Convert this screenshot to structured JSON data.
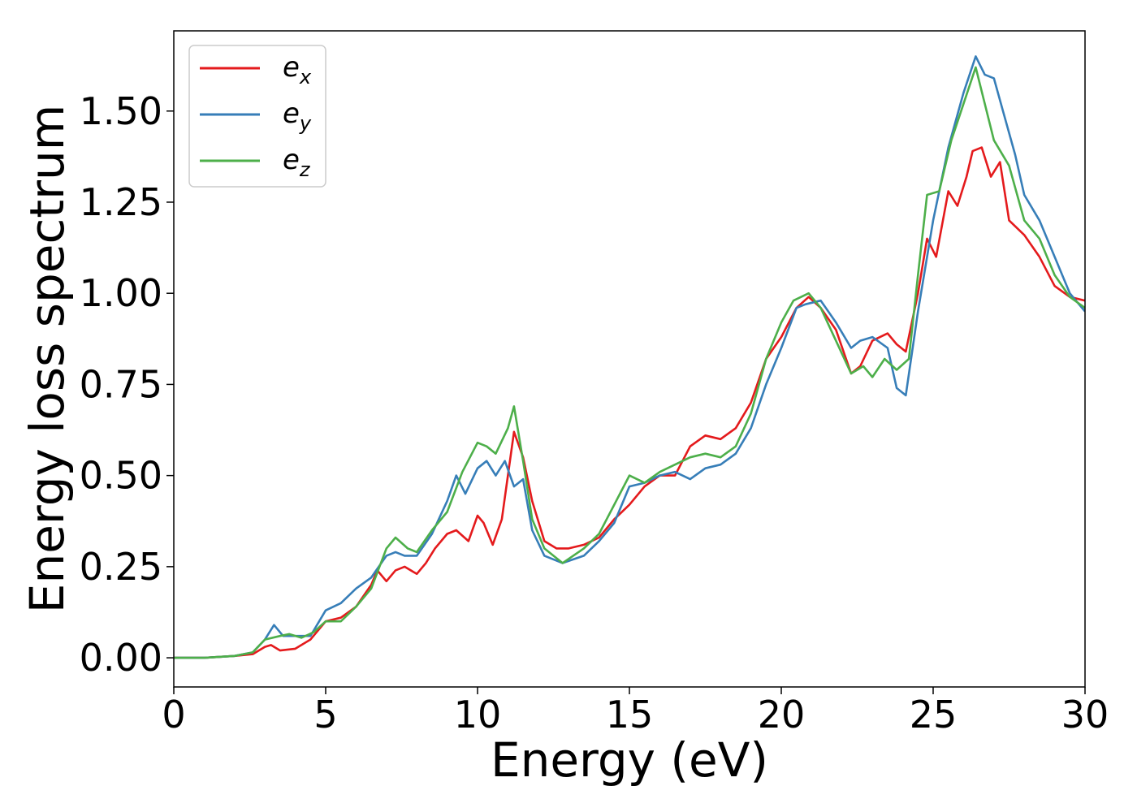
{
  "chart_data": {
    "type": "line",
    "title": "",
    "xlabel": "Energy (eV)",
    "ylabel": "Energy loss spectrum",
    "xlim": [
      0,
      30
    ],
    "ylim": [
      -0.08,
      1.72
    ],
    "xticks": [
      0,
      5,
      10,
      15,
      20,
      25,
      30
    ],
    "xtick_labels": [
      "0",
      "5",
      "10",
      "15",
      "20",
      "25",
      "30"
    ],
    "yticks": [
      0.0,
      0.25,
      0.5,
      0.75,
      1.0,
      1.25,
      1.5
    ],
    "ytick_labels": [
      "0.00",
      "0.25",
      "0.50",
      "0.75",
      "1.00",
      "1.25",
      "1.50"
    ],
    "grid": false,
    "legend_position": "upper left",
    "series": [
      {
        "name": "e_x",
        "label_base": "e",
        "label_sub": "x",
        "color": "#e41a1c",
        "points": [
          [
            0,
            0
          ],
          [
            1,
            0
          ],
          [
            2,
            0.005
          ],
          [
            2.6,
            0.01
          ],
          [
            3.0,
            0.03
          ],
          [
            3.2,
            0.035
          ],
          [
            3.5,
            0.02
          ],
          [
            4.0,
            0.025
          ],
          [
            4.5,
            0.05
          ],
          [
            5.0,
            0.1
          ],
          [
            5.5,
            0.11
          ],
          [
            6.0,
            0.14
          ],
          [
            6.5,
            0.2
          ],
          [
            6.7,
            0.24
          ],
          [
            7.0,
            0.21
          ],
          [
            7.3,
            0.24
          ],
          [
            7.6,
            0.25
          ],
          [
            8.0,
            0.23
          ],
          [
            8.3,
            0.26
          ],
          [
            8.6,
            0.3
          ],
          [
            9.0,
            0.34
          ],
          [
            9.3,
            0.35
          ],
          [
            9.7,
            0.32
          ],
          [
            10.0,
            0.39
          ],
          [
            10.2,
            0.37
          ],
          [
            10.5,
            0.31
          ],
          [
            10.8,
            0.38
          ],
          [
            11.0,
            0.5
          ],
          [
            11.2,
            0.62
          ],
          [
            11.5,
            0.55
          ],
          [
            11.8,
            0.43
          ],
          [
            12.2,
            0.32
          ],
          [
            12.6,
            0.3
          ],
          [
            13.0,
            0.3
          ],
          [
            13.5,
            0.31
          ],
          [
            14.0,
            0.33
          ],
          [
            14.5,
            0.38
          ],
          [
            15.0,
            0.42
          ],
          [
            15.5,
            0.47
          ],
          [
            16.0,
            0.5
          ],
          [
            16.5,
            0.5
          ],
          [
            17.0,
            0.58
          ],
          [
            17.5,
            0.61
          ],
          [
            18.0,
            0.6
          ],
          [
            18.5,
            0.63
          ],
          [
            19.0,
            0.7
          ],
          [
            19.5,
            0.82
          ],
          [
            20.0,
            0.88
          ],
          [
            20.5,
            0.96
          ],
          [
            20.9,
            0.99
          ],
          [
            21.3,
            0.96
          ],
          [
            21.8,
            0.9
          ],
          [
            22.3,
            0.78
          ],
          [
            22.6,
            0.8
          ],
          [
            23.0,
            0.87
          ],
          [
            23.5,
            0.89
          ],
          [
            23.8,
            0.86
          ],
          [
            24.1,
            0.84
          ],
          [
            24.5,
            1.0
          ],
          [
            24.8,
            1.15
          ],
          [
            25.1,
            1.1
          ],
          [
            25.5,
            1.28
          ],
          [
            25.8,
            1.24
          ],
          [
            26.1,
            1.32
          ],
          [
            26.3,
            1.39
          ],
          [
            26.6,
            1.4
          ],
          [
            26.9,
            1.32
          ],
          [
            27.2,
            1.36
          ],
          [
            27.5,
            1.2
          ],
          [
            28.0,
            1.16
          ],
          [
            28.5,
            1.1
          ],
          [
            29.0,
            1.02
          ],
          [
            29.5,
            0.99
          ],
          [
            30.0,
            0.98
          ]
        ]
      },
      {
        "name": "e_y",
        "label_base": "e",
        "label_sub": "y",
        "color": "#377eb8",
        "points": [
          [
            0,
            0
          ],
          [
            1,
            0
          ],
          [
            2,
            0.005
          ],
          [
            2.6,
            0.015
          ],
          [
            3.0,
            0.05
          ],
          [
            3.3,
            0.09
          ],
          [
            3.6,
            0.06
          ],
          [
            4.0,
            0.06
          ],
          [
            4.5,
            0.06
          ],
          [
            5.0,
            0.13
          ],
          [
            5.5,
            0.15
          ],
          [
            6.0,
            0.19
          ],
          [
            6.5,
            0.22
          ],
          [
            7.0,
            0.28
          ],
          [
            7.3,
            0.29
          ],
          [
            7.6,
            0.28
          ],
          [
            8.0,
            0.28
          ],
          [
            8.5,
            0.34
          ],
          [
            9.0,
            0.43
          ],
          [
            9.3,
            0.5
          ],
          [
            9.6,
            0.45
          ],
          [
            10.0,
            0.52
          ],
          [
            10.3,
            0.54
          ],
          [
            10.6,
            0.5
          ],
          [
            10.9,
            0.54
          ],
          [
            11.2,
            0.47
          ],
          [
            11.5,
            0.49
          ],
          [
            11.8,
            0.35
          ],
          [
            12.2,
            0.28
          ],
          [
            12.8,
            0.26
          ],
          [
            13.5,
            0.28
          ],
          [
            14.0,
            0.32
          ],
          [
            14.5,
            0.37
          ],
          [
            15.0,
            0.47
          ],
          [
            15.5,
            0.48
          ],
          [
            16.0,
            0.5
          ],
          [
            16.5,
            0.51
          ],
          [
            17.0,
            0.49
          ],
          [
            17.5,
            0.52
          ],
          [
            18.0,
            0.53
          ],
          [
            18.5,
            0.56
          ],
          [
            19.0,
            0.63
          ],
          [
            19.5,
            0.75
          ],
          [
            20.0,
            0.85
          ],
          [
            20.5,
            0.96
          ],
          [
            20.8,
            0.97
          ],
          [
            21.3,
            0.98
          ],
          [
            21.8,
            0.92
          ],
          [
            22.3,
            0.85
          ],
          [
            22.6,
            0.87
          ],
          [
            23.0,
            0.88
          ],
          [
            23.5,
            0.85
          ],
          [
            23.8,
            0.74
          ],
          [
            24.1,
            0.72
          ],
          [
            24.5,
            0.95
          ],
          [
            25.0,
            1.2
          ],
          [
            25.5,
            1.4
          ],
          [
            26.0,
            1.55
          ],
          [
            26.4,
            1.65
          ],
          [
            26.7,
            1.6
          ],
          [
            27.0,
            1.59
          ],
          [
            27.3,
            1.5
          ],
          [
            27.7,
            1.38
          ],
          [
            28.0,
            1.27
          ],
          [
            28.5,
            1.2
          ],
          [
            29.0,
            1.1
          ],
          [
            29.5,
            1.0
          ],
          [
            30.0,
            0.95
          ]
        ]
      },
      {
        "name": "e_z",
        "label_base": "e",
        "label_sub": "z",
        "color": "#4daf4a",
        "points": [
          [
            0,
            0
          ],
          [
            1,
            0
          ],
          [
            2,
            0.005
          ],
          [
            2.6,
            0.015
          ],
          [
            3.0,
            0.05
          ],
          [
            3.5,
            0.06
          ],
          [
            3.8,
            0.065
          ],
          [
            4.2,
            0.055
          ],
          [
            4.6,
            0.07
          ],
          [
            5.0,
            0.1
          ],
          [
            5.5,
            0.1
          ],
          [
            6.0,
            0.14
          ],
          [
            6.5,
            0.19
          ],
          [
            7.0,
            0.3
          ],
          [
            7.3,
            0.33
          ],
          [
            7.7,
            0.3
          ],
          [
            8.0,
            0.29
          ],
          [
            8.5,
            0.35
          ],
          [
            9.0,
            0.4
          ],
          [
            9.5,
            0.51
          ],
          [
            10.0,
            0.59
          ],
          [
            10.3,
            0.58
          ],
          [
            10.6,
            0.56
          ],
          [
            11.0,
            0.63
          ],
          [
            11.2,
            0.69
          ],
          [
            11.5,
            0.54
          ],
          [
            11.8,
            0.38
          ],
          [
            12.2,
            0.3
          ],
          [
            12.8,
            0.26
          ],
          [
            13.5,
            0.3
          ],
          [
            14.0,
            0.34
          ],
          [
            14.5,
            0.42
          ],
          [
            15.0,
            0.5
          ],
          [
            15.5,
            0.48
          ],
          [
            16.0,
            0.51
          ],
          [
            16.5,
            0.53
          ],
          [
            17.0,
            0.55
          ],
          [
            17.5,
            0.56
          ],
          [
            18.0,
            0.55
          ],
          [
            18.5,
            0.58
          ],
          [
            19.0,
            0.67
          ],
          [
            19.5,
            0.82
          ],
          [
            20.0,
            0.92
          ],
          [
            20.4,
            0.98
          ],
          [
            20.9,
            1.0
          ],
          [
            21.3,
            0.96
          ],
          [
            21.8,
            0.87
          ],
          [
            22.3,
            0.78
          ],
          [
            22.7,
            0.8
          ],
          [
            23.0,
            0.77
          ],
          [
            23.4,
            0.82
          ],
          [
            23.8,
            0.79
          ],
          [
            24.2,
            0.82
          ],
          [
            24.5,
            1.05
          ],
          [
            24.8,
            1.27
          ],
          [
            25.2,
            1.28
          ],
          [
            25.6,
            1.42
          ],
          [
            26.0,
            1.52
          ],
          [
            26.4,
            1.62
          ],
          [
            26.7,
            1.52
          ],
          [
            27.0,
            1.42
          ],
          [
            27.5,
            1.35
          ],
          [
            28.0,
            1.2
          ],
          [
            28.5,
            1.15
          ],
          [
            29.0,
            1.05
          ],
          [
            29.5,
            0.99
          ],
          [
            30.0,
            0.96
          ]
        ]
      }
    ]
  }
}
